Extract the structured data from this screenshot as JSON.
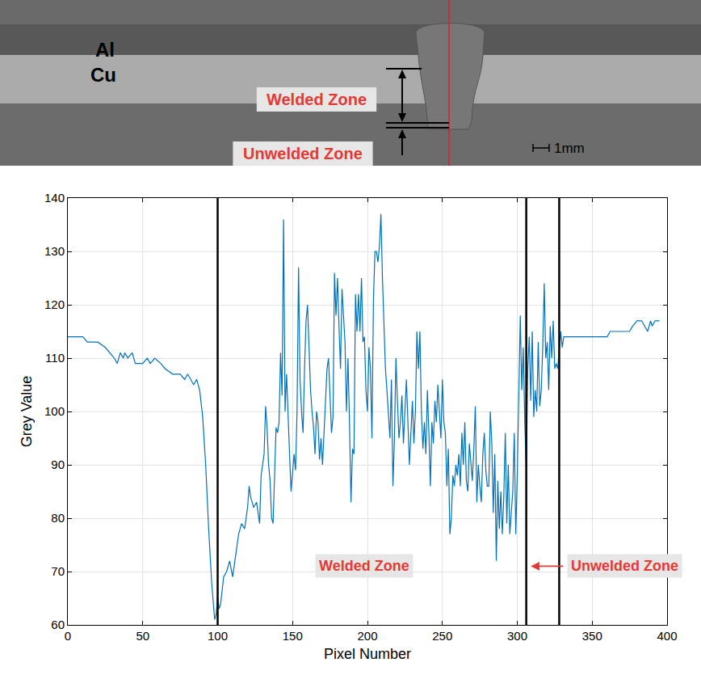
{
  "figure_image": {
    "layer_labels": [
      "Al",
      "Cu"
    ],
    "zone_labels": [
      "Welded Zone",
      "Unwelded Zone"
    ],
    "scale_bar": "1mm"
  },
  "chart_data": {
    "type": "line",
    "x_label": "Pixel Number",
    "y_label": "Grey Value",
    "color": "#0072bd",
    "x": [
      0,
      5,
      10,
      13,
      20,
      25,
      28,
      31,
      33,
      35,
      37,
      38,
      40,
      43,
      45,
      50,
      53,
      55,
      58,
      62,
      65,
      70,
      75,
      78,
      80,
      82,
      84,
      86,
      88,
      90,
      92,
      94,
      96,
      98,
      99,
      100,
      101,
      102,
      104,
      106,
      108,
      110,
      112,
      114,
      116,
      118,
      120,
      121,
      122,
      124,
      126,
      128,
      129,
      131,
      132,
      133,
      134,
      135,
      136,
      137,
      138,
      139,
      140,
      141,
      142,
      143,
      144,
      145,
      146,
      147,
      148,
      149,
      150,
      151,
      152,
      153,
      154,
      155,
      156,
      157,
      158,
      159,
      160,
      161,
      162,
      163,
      164,
      165,
      166,
      167,
      168,
      169,
      170,
      171,
      172,
      173,
      174,
      175,
      176,
      177,
      178,
      179,
      180,
      181,
      182,
      183,
      184,
      185,
      186,
      187,
      188,
      189,
      190,
      191,
      192,
      193,
      194,
      195,
      196,
      197,
      198,
      199,
      200,
      201,
      202,
      203,
      204,
      205,
      206,
      207,
      208,
      209,
      210,
      211,
      212,
      213,
      214,
      215,
      216,
      217,
      218,
      219,
      220,
      221,
      222,
      223,
      224,
      225,
      226,
      227,
      228,
      229,
      230,
      231,
      232,
      233,
      234,
      235,
      236,
      237,
      238,
      239,
      240,
      241,
      242,
      243,
      244,
      245,
      246,
      247,
      248,
      249,
      250,
      251,
      252,
      253,
      254,
      255,
      256,
      257,
      258,
      259,
      260,
      261,
      262,
      263,
      264,
      265,
      266,
      267,
      268,
      269,
      270,
      271,
      272,
      273,
      274,
      275,
      276,
      277,
      278,
      279,
      280,
      281,
      282,
      283,
      284,
      285,
      286,
      287,
      288,
      289,
      290,
      291,
      292,
      293,
      294,
      295,
      296,
      297,
      298,
      299,
      300,
      301,
      302,
      303,
      304,
      305,
      306,
      307,
      308,
      309,
      310,
      311,
      312,
      313,
      314,
      315,
      316,
      317,
      318,
      319,
      320,
      321,
      322,
      323,
      324,
      325,
      326,
      327,
      328,
      329,
      330,
      331,
      335,
      340,
      345,
      350,
      355,
      360,
      362,
      365,
      370,
      375,
      377,
      380,
      383,
      385,
      387,
      389,
      390,
      392,
      395
    ],
    "values": [
      114,
      114,
      114,
      113,
      113,
      112,
      111,
      110,
      109,
      111,
      110,
      111,
      110,
      111,
      109,
      109,
      110,
      109,
      110,
      109,
      108,
      107,
      107,
      106,
      107,
      106,
      105,
      106,
      104,
      99,
      90,
      78,
      68,
      61,
      62,
      65,
      63,
      64,
      69,
      70,
      72,
      69,
      73,
      77,
      79,
      78,
      82,
      86,
      84,
      82,
      83,
      79,
      88,
      92,
      101,
      97,
      90,
      87,
      80,
      79,
      88,
      97,
      96,
      98,
      111,
      103,
      136,
      100,
      107,
      98,
      92,
      85,
      88,
      92,
      89,
      100,
      127,
      106,
      100,
      96,
      108,
      117,
      120,
      110,
      104,
      100,
      97,
      92,
      100,
      98,
      91,
      95,
      90,
      96,
      102,
      108,
      110,
      104,
      96,
      99,
      126,
      118,
      125,
      116,
      108,
      123,
      118,
      113,
      100,
      110,
      98,
      83,
      93,
      92,
      122,
      115,
      122,
      115,
      125,
      113,
      114,
      104,
      100,
      112,
      108,
      95,
      121,
      130,
      130,
      128,
      131,
      137,
      125,
      115,
      108,
      104,
      100,
      95,
      106,
      86,
      95,
      110,
      102,
      95,
      98,
      103,
      94,
      101,
      106,
      98,
      90,
      96,
      102,
      94,
      100,
      115,
      108,
      115,
      100,
      93,
      98,
      92,
      104,
      96,
      86,
      98,
      94,
      102,
      98,
      105,
      100,
      95,
      106,
      98,
      96,
      86,
      93,
      77,
      80,
      88,
      86,
      90,
      88,
      92,
      86,
      96,
      90,
      98,
      87,
      85,
      94,
      90,
      87,
      93,
      101,
      83,
      90,
      86,
      83,
      92,
      96,
      89,
      86,
      86,
      100,
      94,
      81,
      92,
      72,
      87,
      78,
      85,
      77,
      84,
      96,
      79,
      90,
      77,
      82,
      85,
      96,
      77,
      88,
      103,
      118,
      104,
      112,
      98,
      89,
      108,
      114,
      102,
      115,
      99,
      104,
      100,
      113,
      101,
      104,
      112,
      124,
      110,
      113,
      104,
      116,
      110,
      117,
      108,
      109,
      108,
      111,
      115,
      112,
      114,
      114,
      114,
      114,
      114,
      114,
      114,
      115,
      115,
      115,
      115,
      116,
      117,
      117,
      116,
      115,
      117,
      116,
      117,
      117
    ],
    "xlim": [
      0,
      400
    ],
    "xticks": [
      0,
      50,
      100,
      150,
      200,
      250,
      300,
      350,
      400
    ],
    "ylim": [
      60,
      140
    ],
    "yticks": [
      60,
      70,
      80,
      90,
      100,
      110,
      120,
      130,
      140
    ],
    "grid": true,
    "vlines": [
      100,
      306,
      328
    ],
    "annotations": [
      {
        "text": "Welded Zone",
        "x": 198,
        "y": 71
      },
      {
        "text": "Unwelded Zone",
        "x": 333,
        "y": 71,
        "arrow_to": 309
      }
    ]
  }
}
